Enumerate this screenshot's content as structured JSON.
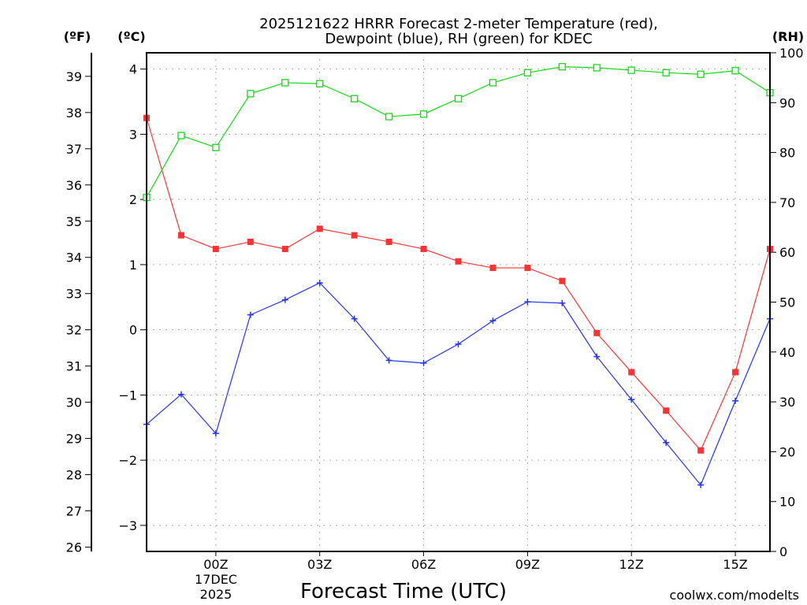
{
  "chart_data": {
    "type": "line",
    "title_line1": "2025121622 HRRR Forecast 2-meter Temperature (red),",
    "title_line2": "Dewpoint (blue), RH (green) for KDEC",
    "xlabel": "Forecast Time (UTC)",
    "left_axis_f_label": "(ºF)",
    "left_axis_c_label": "(ºC)",
    "right_axis_label": "(RH)",
    "x_hours": [
      -2,
      -1,
      0,
      1,
      2,
      3,
      4,
      5,
      6,
      7,
      8,
      9,
      10,
      11,
      12,
      13,
      14,
      15,
      16
    ],
    "x_tick_hours": [
      0,
      3,
      6,
      9,
      12,
      15
    ],
    "x_tick_labels": [
      "00Z",
      "03Z",
      "06Z",
      "09Z",
      "12Z",
      "15Z"
    ],
    "date_label_line1": "17DEC",
    "date_label_line2": "2025",
    "xlim": [
      -2,
      16
    ],
    "ylim_c": [
      -3.4,
      4.25
    ],
    "c_ticks": [
      -3,
      -2,
      -1,
      0,
      1,
      2,
      3,
      4
    ],
    "f_ticks": [
      26,
      27,
      28,
      29,
      30,
      31,
      32,
      33,
      34,
      35,
      36,
      37,
      38,
      39
    ],
    "rh_ticks": [
      0,
      10,
      20,
      30,
      40,
      50,
      60,
      70,
      80,
      90,
      100
    ],
    "ylim_rh": [
      0,
      100
    ],
    "grid": true,
    "series": [
      {
        "name": "Temperature",
        "units": "C",
        "color": "#ff3333",
        "marker": "filled-square",
        "values": [
          3.25,
          1.45,
          1.24,
          1.35,
          1.24,
          1.55,
          1.45,
          1.35,
          1.24,
          1.05,
          0.95,
          0.95,
          0.75,
          -0.05,
          -0.65,
          -1.24,
          -1.85,
          -0.65,
          1.24
        ]
      },
      {
        "name": "Dewpoint",
        "units": "C",
        "color": "#2233ff",
        "marker": "plus",
        "values": [
          -1.45,
          -0.99,
          -1.59,
          0.23,
          0.46,
          0.72,
          0.17,
          -0.47,
          -0.51,
          -0.22,
          0.14,
          0.43,
          0.41,
          -0.41,
          -1.07,
          -1.73,
          -2.38,
          -1.09,
          0.17
        ]
      },
      {
        "name": "RH",
        "units": "%",
        "color": "#11dd11",
        "marker": "open-square",
        "values": [
          71,
          83.4,
          81,
          91.8,
          94,
          93.8,
          90.8,
          87.2,
          87.7,
          90.8,
          94,
          96,
          97.2,
          97,
          96.5,
          96,
          95.7,
          96.4,
          92
        ]
      }
    ],
    "credit": "coolwx.com/modelts",
    "credit_color": "#ff4444"
  }
}
